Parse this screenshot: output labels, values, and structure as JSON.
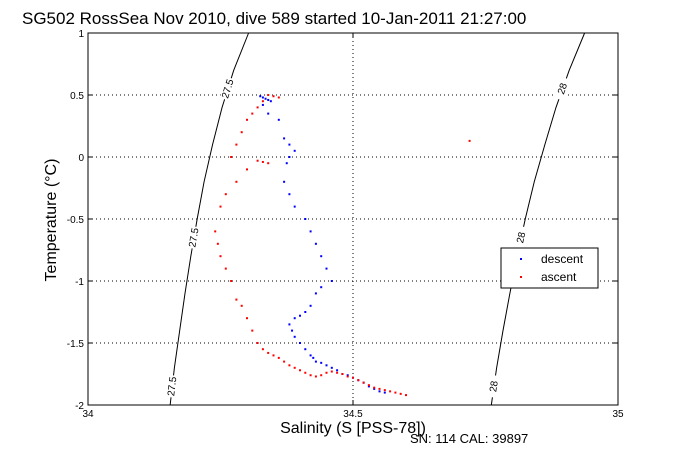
{
  "chart_data": {
    "type": "scatter",
    "title": "SG502 RossSea Nov 2010, dive 589 started 10-Jan-2011 21:27:00",
    "xlabel": "Salinity (S [PSS-78])",
    "ylabel": "Temperature (°C)",
    "xlim": [
      34,
      35
    ],
    "ylim": [
      -2,
      1
    ],
    "x_ticks": [
      "34",
      "34.5",
      "35"
    ],
    "y_ticks": [
      "-2",
      "-1.5",
      "-1",
      "-0.5",
      "0",
      "0.5",
      "1"
    ],
    "grid": true,
    "legend_position": "right",
    "footnote": "SN: 114  CAL: 39897",
    "density_contours": [
      {
        "level": "27.5",
        "labels": [
          "27.5",
          "27.5",
          "27.5"
        ],
        "points": [
          [
            34.303,
            1.0
          ],
          [
            34.275,
            0.7
          ],
          [
            34.253,
            0.4
          ],
          [
            34.235,
            0.1
          ],
          [
            34.219,
            -0.2
          ],
          [
            34.206,
            -0.5
          ],
          [
            34.194,
            -0.8
          ],
          [
            34.183,
            -1.1
          ],
          [
            34.173,
            -1.4
          ],
          [
            34.163,
            -1.7
          ],
          [
            34.155,
            -2.0
          ]
        ]
      },
      {
        "level": "28",
        "labels": [
          "28",
          "28",
          "28"
        ],
        "points": [
          [
            34.937,
            1.0
          ],
          [
            34.908,
            0.7
          ],
          [
            34.883,
            0.4
          ],
          [
            34.862,
            0.1
          ],
          [
            34.842,
            -0.2
          ],
          [
            34.825,
            -0.5
          ],
          [
            34.81,
            -0.8
          ],
          [
            34.796,
            -1.1
          ],
          [
            34.783,
            -1.4
          ],
          [
            34.771,
            -1.7
          ],
          [
            34.761,
            -2.0
          ]
        ]
      }
    ],
    "series": [
      {
        "name": "descent",
        "color": "#0000ff",
        "marker": "dot",
        "x": [
          34.325,
          34.33,
          34.335,
          34.34,
          34.345,
          34.33,
          34.34,
          34.36,
          34.37,
          34.38,
          34.39,
          34.38,
          34.375,
          34.37,
          34.38,
          34.39,
          34.41,
          34.42,
          34.43,
          34.44,
          34.45,
          34.46,
          34.44,
          34.43,
          34.42,
          34.41,
          34.4,
          34.39,
          34.38,
          34.385,
          34.39,
          34.4,
          34.41,
          34.42,
          34.425,
          34.43,
          34.44,
          34.45,
          34.46,
          34.47,
          34.48,
          34.49,
          34.5,
          34.51,
          34.52,
          34.53,
          34.54,
          34.55,
          34.56
        ],
        "y": [
          0.49,
          0.48,
          0.47,
          0.46,
          0.45,
          0.42,
          0.35,
          0.3,
          0.15,
          0.1,
          0.05,
          0.0,
          -0.05,
          -0.2,
          -0.3,
          -0.4,
          -0.5,
          -0.6,
          -0.7,
          -0.8,
          -0.9,
          -1.0,
          -1.05,
          -1.1,
          -1.2,
          -1.25,
          -1.28,
          -1.3,
          -1.35,
          -1.4,
          -1.45,
          -1.5,
          -1.55,
          -1.6,
          -1.62,
          -1.65,
          -1.66,
          -1.68,
          -1.7,
          -1.72,
          -1.75,
          -1.76,
          -1.78,
          -1.8,
          -1.82,
          -1.85,
          -1.87,
          -1.89,
          -1.9
        ]
      },
      {
        "name": "ascent",
        "color": "#ff0000",
        "marker": "dot",
        "x": [
          34.34,
          34.35,
          34.36,
          34.33,
          34.32,
          34.31,
          34.3,
          34.29,
          34.28,
          34.27,
          34.32,
          34.33,
          34.34,
          34.3,
          34.28,
          34.26,
          34.25,
          34.24,
          34.245,
          34.25,
          34.26,
          34.27,
          34.28,
          34.29,
          34.3,
          34.31,
          34.32,
          34.33,
          34.34,
          34.35,
          34.36,
          34.37,
          34.38,
          34.39,
          34.4,
          34.41,
          34.42,
          34.43,
          34.44,
          34.45,
          34.46,
          34.47,
          34.48,
          34.49,
          34.5,
          34.51,
          34.52,
          34.53,
          34.54,
          34.55,
          34.56,
          34.57,
          34.58,
          34.59,
          34.6,
          34.72
        ],
        "y": [
          0.5,
          0.49,
          0.48,
          0.45,
          0.4,
          0.35,
          0.3,
          0.2,
          0.1,
          0.0,
          -0.03,
          -0.04,
          -0.05,
          -0.1,
          -0.2,
          -0.3,
          -0.4,
          -0.6,
          -0.7,
          -0.8,
          -0.9,
          -1.0,
          -1.15,
          -1.2,
          -1.3,
          -1.4,
          -1.5,
          -1.55,
          -1.58,
          -1.6,
          -1.62,
          -1.65,
          -1.68,
          -1.7,
          -1.72,
          -1.74,
          -1.76,
          -1.77,
          -1.76,
          -1.74,
          -1.73,
          -1.74,
          -1.75,
          -1.77,
          -1.78,
          -1.8,
          -1.82,
          -1.84,
          -1.86,
          -1.87,
          -1.88,
          -1.89,
          -1.9,
          -1.91,
          -1.92,
          0.13
        ]
      }
    ]
  }
}
